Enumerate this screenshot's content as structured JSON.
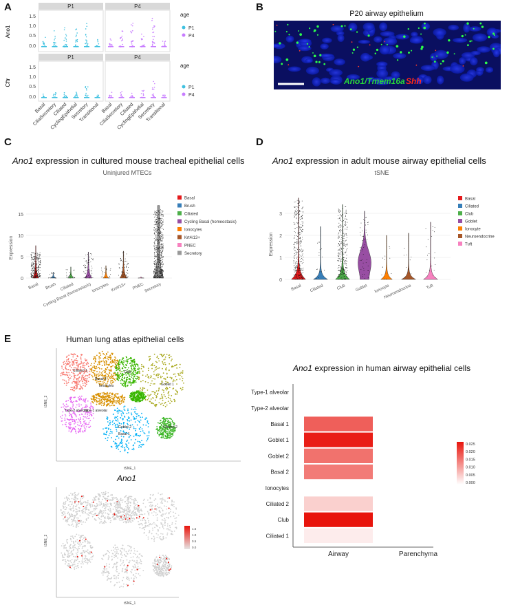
{
  "panels": {
    "A": "A",
    "B": "B",
    "C": "C",
    "D": "D",
    "E": "E"
  },
  "panelA": {
    "facets": [
      "P1",
      "P4"
    ],
    "genes": [
      "Ano1",
      "Cftr"
    ],
    "legend_title": "age",
    "legend_items": [
      {
        "label": "P1",
        "color": "#3fc1e0"
      },
      {
        "label": "P4",
        "color": "#c77cff"
      }
    ],
    "y_ticks": [
      "1.5",
      "1.0",
      "0.5",
      "0.0"
    ],
    "categories": [
      "Basal",
      "Ciliated",
      "CycilingEpithelial",
      "CiliaSecretory",
      "Secretory",
      "Transitional"
    ],
    "x_labels": [
      "Basal",
      "CiliaSecretory",
      "Ciliated",
      "CyclingEpithelial",
      "Secretory",
      "Transitional"
    ]
  },
  "panelB": {
    "title": "P20 airway epithelium",
    "label_green": "Ano1/Tmem16a",
    "label_red": "Shh"
  },
  "panelC": {
    "title_gene": "Ano1",
    "title_rest": " expression in cultured mouse tracheal epithelial cells",
    "subtitle": "Uninjured MTECs",
    "ylabel": "Expression",
    "y_ticks": [
      "15",
      "10",
      "5",
      "0"
    ],
    "legend": [
      {
        "label": "Basal",
        "color": "#e41a1c"
      },
      {
        "label": "Brush",
        "color": "#377eb8"
      },
      {
        "label": "Ciliated",
        "color": "#4daf4a"
      },
      {
        "label": "Cycling Basal (homeostasis)",
        "color": "#984ea3"
      },
      {
        "label": "Ionocytes",
        "color": "#ff7f00"
      },
      {
        "label": "Krt4/13+",
        "color": "#a65628"
      },
      {
        "label": "PNEC",
        "color": "#f781bf"
      },
      {
        "label": "Secretory",
        "color": "#999999"
      }
    ],
    "x_labels": [
      "Basal",
      "Brush",
      "Ciliated",
      "Cycling Basal (homeostasis)",
      "Ionocytes",
      "Krt4/13+",
      "PNEC",
      "Secretory"
    ]
  },
  "panelD": {
    "title_gene": "Ano1",
    "title_rest": " expression in adult mouse airway epithelial cells",
    "subtitle": "tSNE",
    "ylabel": "Expression",
    "y_ticks": [
      "3",
      "2",
      "1",
      "0"
    ],
    "legend": [
      {
        "label": "Basal",
        "color": "#e41a1c"
      },
      {
        "label": "Ciliated",
        "color": "#377eb8"
      },
      {
        "label": "Club",
        "color": "#4daf4a"
      },
      {
        "label": "Goblet",
        "color": "#984ea3"
      },
      {
        "label": "Ionocyte",
        "color": "#ff7f00"
      },
      {
        "label": "Neuroendocrine",
        "color": "#a65628"
      },
      {
        "label": "Tuft",
        "color": "#f781bf"
      }
    ],
    "x_labels": [
      "Basal",
      "Ciliated",
      "Club",
      "Goblet",
      "Ionocyte",
      "Neuroendocrine",
      "Tuft"
    ]
  },
  "panelE": {
    "title": "Human lung atlas epithelial cells",
    "feature_title": "Ano1",
    "axis_x": "tSNE_1",
    "axis_y": "tSNE_2",
    "clusters": [
      {
        "label": "Ciliated 1",
        "color": "#f8766d"
      },
      {
        "label": "Basal 2",
        "color": "#d89000"
      },
      {
        "label": "Ionocytes",
        "color": "#a3a500"
      },
      {
        "label": "Club",
        "color": "#39b600"
      },
      {
        "label": "Goblet 1",
        "color": "#a8a81c"
      },
      {
        "label": "Type-2 alveolar",
        "color": "#e76bf3"
      },
      {
        "label": "Type-1 alveolar",
        "color": "#e76bf3"
      },
      {
        "label": "Goblet 2",
        "color": "#00b0f6"
      },
      {
        "label": "Basal 1",
        "color": "#00b0f6"
      },
      {
        "label": "Ciliated 2",
        "color": "#3fb72a"
      }
    ],
    "feature_scale": [
      "1.5",
      "1.0",
      "0.5",
      "0.0"
    ]
  },
  "chart_data": {
    "type": "heatmap",
    "title": "Ano1 expression in human airway epithelial cells",
    "x_categories": [
      "Airway",
      "Parenchyma"
    ],
    "y_categories": [
      "Type-1 alveolar",
      "Type-2 alveolar",
      "Basal 1",
      "Goblet 1",
      "Goblet 2",
      "Basal 2",
      "Ionocytes",
      "Ciliated 2",
      "Club",
      "Ciliated 1"
    ],
    "values": [
      [
        null,
        null
      ],
      [
        null,
        null
      ],
      [
        0.017,
        null
      ],
      [
        0.024,
        null
      ],
      [
        0.015,
        null
      ],
      [
        0.014,
        null
      ],
      [
        null,
        null
      ],
      [
        0.005,
        null
      ],
      [
        0.025,
        null
      ],
      [
        0.002,
        null
      ]
    ],
    "colorbar_ticks": [
      "0.025",
      "0.020",
      "0.015",
      "0.010",
      "0.005",
      "0.000"
    ],
    "color_low": "#ffffff",
    "color_high": "#e8140c"
  }
}
